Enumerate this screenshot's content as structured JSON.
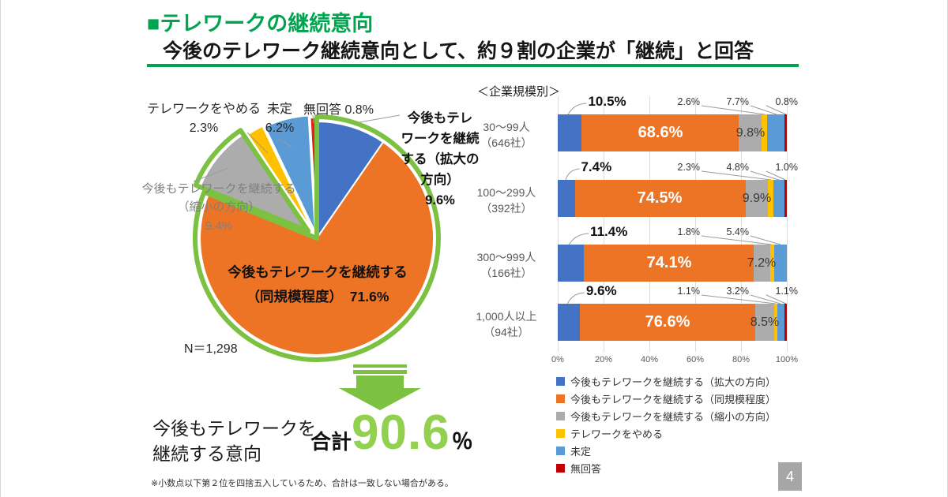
{
  "page": {
    "number": "4"
  },
  "header": {
    "bullet": "■",
    "title": "テレワークの継続意向",
    "subtitle": "今後のテレワーク継続意向として、約９割の企業が「継続」と回答"
  },
  "colors": {
    "green_dark": "#00A44F",
    "green_light": "#7CC142",
    "green_number": "#92D050",
    "blue": "#4472C4",
    "orange": "#ED7425",
    "gray": "#ACACAC",
    "yellow": "#FFC000",
    "light_blue": "#5B9BD5",
    "dark_red": "#C00000",
    "pie_red": "#E32119",
    "leader_line": "#9B9B9B"
  },
  "pie_labels": {
    "stop": "テレワークをやめる\n2.3%",
    "undecided": "未定\n6.2%",
    "noanswer": "無回答 0.8%",
    "expand": "今後もテレ\nワークを継続\nする（拡大の\n方向）\n9.6%",
    "shrink": "今後もテレワークを継続する\n（縮小の方向）\n9.4%",
    "same": "今後もテレワークを継続する\n（同規模程度）　71.6%",
    "n": "N＝1,298"
  },
  "summary": {
    "lead": "今後もテレワークを\n継続する意向",
    "total_prefix": "合計",
    "total_value": "90.6",
    "total_unit": "％"
  },
  "footnote": "※小数点以下第２位を四捨五入しているため、合計は一致しない場合がある。",
  "bar_section": {
    "heading": "＜企業規模別＞"
  },
  "chart_data": [
    {
      "type": "pie",
      "title": "テレワークの継続意向",
      "n": "N＝1,298",
      "labels": [
        "今後もテレワークを継続する（拡大の方向）",
        "今後もテレワークを継続する（同規模程度）",
        "今後もテレワークを継続する（縮小の方向）",
        "テレワークをやめる",
        "未定",
        "無回答"
      ],
      "values": [
        9.6,
        71.6,
        9.4,
        2.3,
        6.2,
        0.8
      ],
      "colors": [
        "#4472C4",
        "#ED7425",
        "#ACACAC",
        "#FFC000",
        "#5B9BD5",
        "#E32119"
      ],
      "highlight_total": 90.6,
      "highlight_note": "緑の枠線は「継続する」合計90.6%を示す"
    },
    {
      "type": "bar",
      "stacked": true,
      "orientation": "horizontal",
      "title": "＜企業規模別＞",
      "categories": [
        {
          "label": "30〜99人",
          "sub": "（646社）"
        },
        {
          "label": "100〜299人",
          "sub": "（392社）"
        },
        {
          "label": "300〜999人",
          "sub": "（166社）"
        },
        {
          "label": "1,000人以上",
          "sub": "（94社）"
        }
      ],
      "series": [
        {
          "name": "今後もテレワークを継続する（拡大の方向）",
          "color": "#4472C4",
          "values": [
            10.5,
            7.4,
            11.4,
            9.6
          ]
        },
        {
          "name": "今後もテレワークを継続する（同規模程度）",
          "color": "#ED7425",
          "values": [
            68.6,
            74.5,
            74.1,
            76.6
          ]
        },
        {
          "name": "今後もテレワークを継続する（縮小の方向）",
          "color": "#ACACAC",
          "values": [
            9.8,
            9.9,
            7.2,
            8.5
          ]
        },
        {
          "name": "テレワークをやめる",
          "color": "#FFC000",
          "values": [
            2.6,
            2.3,
            1.8,
            1.1
          ]
        },
        {
          "name": "未定",
          "color": "#5B9BD5",
          "values": [
            7.7,
            4.8,
            5.4,
            3.2
          ]
        },
        {
          "name": "無回答",
          "color": "#C00000",
          "values": [
            0.8,
            1.0,
            0.0,
            1.1
          ]
        }
      ],
      "x_ticks": [
        "0%",
        "20%",
        "40%",
        "60%",
        "80%",
        "100%"
      ],
      "xlim": [
        0,
        100
      ],
      "grid": true,
      "legend_position": "bottom"
    }
  ]
}
